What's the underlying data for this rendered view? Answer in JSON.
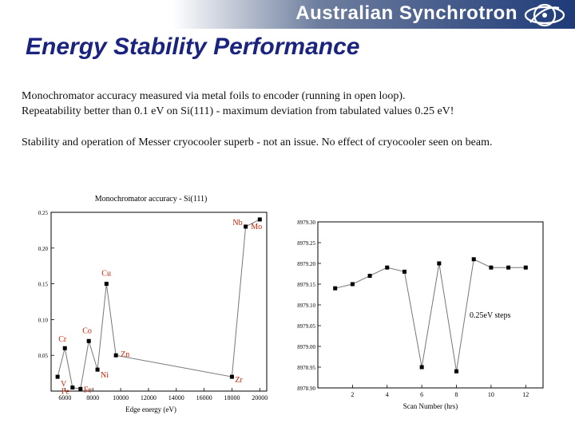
{
  "header": {
    "brand": "Australian Synchrotron"
  },
  "slide": {
    "title": "Energy Stability Performance",
    "paragraph1_line1": "Monochromator accuracy measured via metal foils to encoder (running in open loop).",
    "paragraph1_line2": "Repeatability better than 0.1 eV on Si(111) - maximum deviation from tabulated values 0.25 eV!",
    "paragraph2": "Stability and operation of Messer cryocooler superb - not an issue.  No effect of cryocooler seen on beam."
  },
  "colors": {
    "title": "#1a237e",
    "label_red": "#cc2200",
    "header_dark": "#1e3a78"
  },
  "chart_data": [
    {
      "type": "line",
      "title": "Monochromator accuracy - Si(111)",
      "xlabel": "Edge energy (eV)",
      "ylabel": "",
      "xlim": [
        5000,
        20500
      ],
      "ylim": [
        0,
        0.25
      ],
      "x_ticks": [
        6000,
        8000,
        10000,
        12000,
        14000,
        16000,
        18000,
        20000
      ],
      "y_ticks": [
        0.05,
        0.1,
        0.15,
        0.2,
        0.25
      ],
      "grid": false,
      "series": [
        {
          "points": [
            {
              "x": 5465,
              "y": 0.02,
              "label": "V"
            },
            {
              "x": 5989,
              "y": 0.06,
              "label": "Cr"
            },
            {
              "x": 6539,
              "y": 0.005,
              "label": "Fe"
            },
            {
              "x": 7112,
              "y": 0.003,
              "label": "Fe"
            },
            {
              "x": 7709,
              "y": 0.07,
              "label": "Co"
            },
            {
              "x": 8333,
              "y": 0.03,
              "label": "Ni"
            },
            {
              "x": 8979,
              "y": 0.15,
              "label": "Cu"
            },
            {
              "x": 9659,
              "y": 0.05,
              "label": "Zn"
            },
            {
              "x": 17998,
              "y": 0.02,
              "label": "Zr"
            },
            {
              "x": 18986,
              "y": 0.23,
              "label": "Nb"
            },
            {
              "x": 20000,
              "y": 0.24,
              "label": "Mo"
            }
          ]
        }
      ]
    },
    {
      "type": "line",
      "title": "",
      "xlabel": "Scan Number (hrs)",
      "ylabel": "",
      "xlim": [
        0,
        13
      ],
      "ylim": [
        8978.9,
        8979.3
      ],
      "x_ticks": [
        2,
        4,
        6,
        8,
        10,
        12
      ],
      "y_ticks": [
        "8978.90",
        "8978.95",
        "8979.00",
        "8979.05",
        "8979.10",
        "8979.15",
        "8979.20",
        "8979.25",
        "8979.30"
      ],
      "grid": false,
      "annotation": "0.25eV steps",
      "series": [
        {
          "x": [
            1,
            2,
            3,
            4,
            5,
            6,
            7,
            8,
            9,
            10,
            11,
            12
          ],
          "y": [
            8979.14,
            8979.15,
            8979.17,
            8979.19,
            8979.18,
            8978.95,
            8979.2,
            8978.94,
            8979.21,
            8979.19,
            8979.19,
            8979.19
          ]
        }
      ]
    }
  ]
}
